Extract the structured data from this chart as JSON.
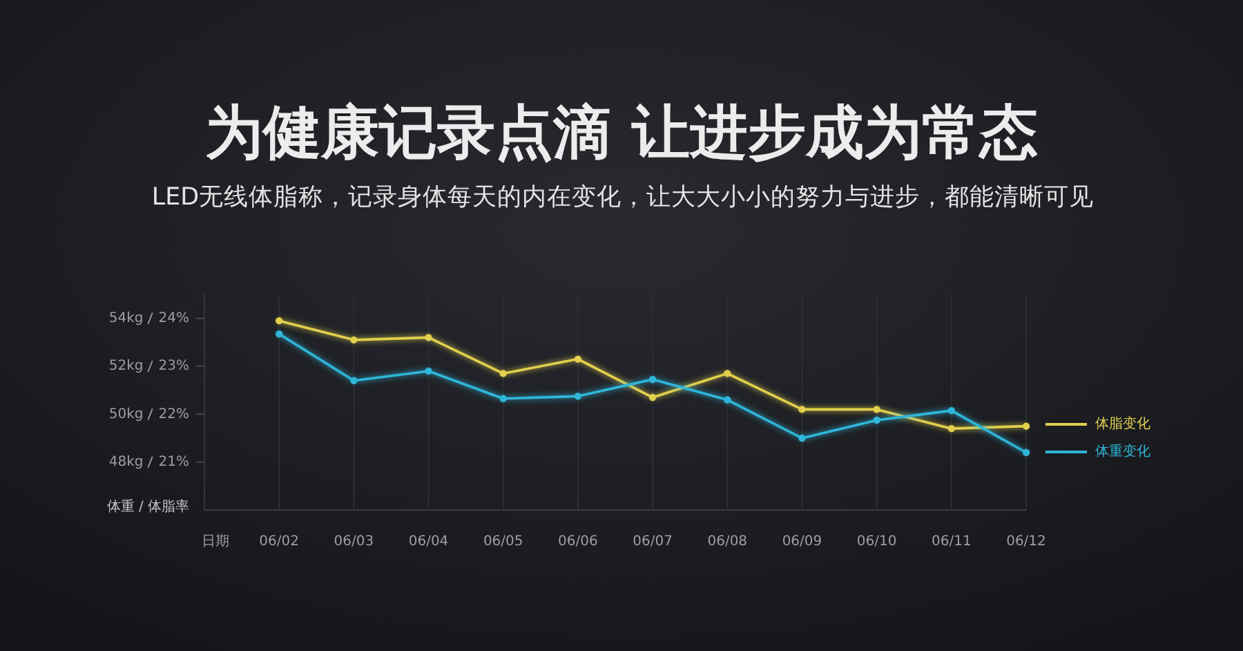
{
  "chart_data": {
    "type": "line",
    "title": "为健康记录点滴 让进步成为常态",
    "subtitle": "LED无线体脂称，记录身体每天的内在变化，让大大小小的努力与进步，都能清晰可见",
    "xlabel": "日期",
    "ylabel": "体重 / 体脂率",
    "categories": [
      "06/02",
      "06/03",
      "06/04",
      "06/05",
      "06/06",
      "06/07",
      "06/08",
      "06/09",
      "06/10",
      "06/11",
      "06/12"
    ],
    "series": [
      {
        "name": "体脂变化",
        "color": "#e2d04e",
        "axis": "y2",
        "values": [
          23.95,
          23.55,
          23.6,
          22.85,
          23.15,
          22.35,
          22.85,
          22.1,
          22.1,
          21.7,
          21.75
        ]
      },
      {
        "name": "体重变化",
        "color": "#2fb6da",
        "values": [
          53.35,
          51.4,
          51.8,
          50.65,
          50.75,
          51.45,
          50.6,
          49.0,
          49.75,
          50.15,
          48.4
        ]
      }
    ],
    "ylim": [
      46,
      55
    ],
    "yticks": [
      {
        "value": 48,
        "label": "48kg"
      },
      {
        "value": 50,
        "label": "50kg"
      },
      {
        "value": 52,
        "label": "52kg"
      },
      {
        "value": 54,
        "label": "54kg"
      }
    ],
    "y2lim": [
      20,
      24.5
    ],
    "y2ticks": [
      {
        "value": 21,
        "label": "21%"
      },
      {
        "value": 22,
        "label": "22%"
      },
      {
        "value": 23,
        "label": "23%"
      },
      {
        "value": 24,
        "label": "24%"
      }
    ],
    "grid": "x",
    "legend": "right",
    "marker": "circle",
    "line_style": "solid"
  }
}
